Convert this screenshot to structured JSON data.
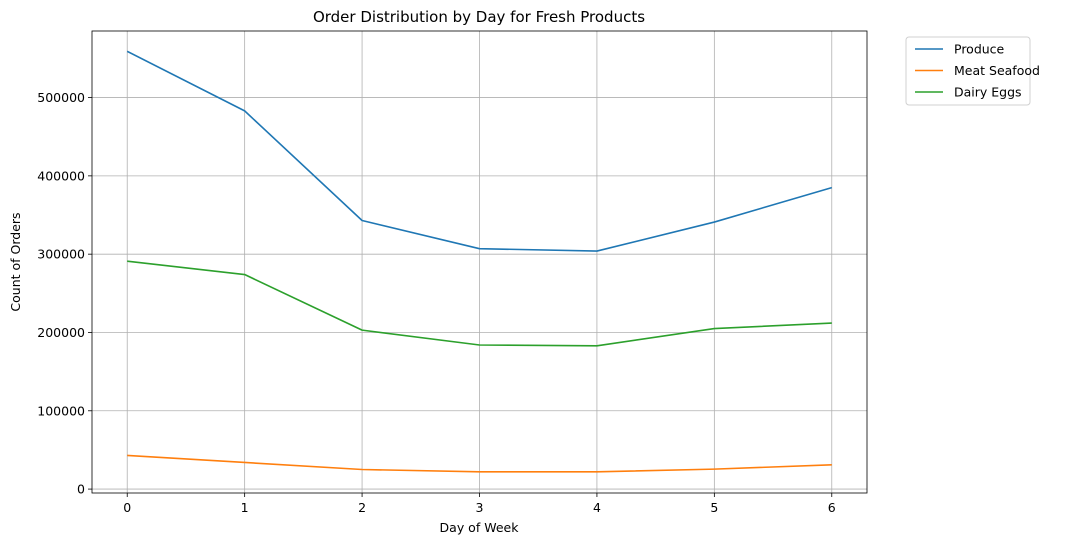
{
  "chart_data": {
    "type": "line",
    "title": "Order Distribution by Day for Fresh Products",
    "xlabel": "Day of Week",
    "ylabel": "Count of Orders",
    "x": [
      0,
      1,
      2,
      3,
      4,
      5,
      6
    ],
    "x_ticks": [
      "0",
      "1",
      "2",
      "3",
      "4",
      "5",
      "6"
    ],
    "xlim": [
      -0.3,
      6.3
    ],
    "ylim": [
      -5000,
      585000
    ],
    "y_ticks": [
      0,
      100000,
      200000,
      300000,
      400000,
      500000
    ],
    "y_tick_labels": [
      "0",
      "100000",
      "200000",
      "300000",
      "400000",
      "500000"
    ],
    "grid": true,
    "legend_placement": "outside top-right",
    "series": [
      {
        "name": "Produce",
        "color": "#1f77b4",
        "values": [
          559000,
          483000,
          343000,
          307000,
          304000,
          341000,
          385000
        ]
      },
      {
        "name": "Meat Seafood",
        "color": "#ff7f0e",
        "values": [
          43000,
          34000,
          25000,
          22000,
          22000,
          25500,
          31000
        ]
      },
      {
        "name": "Dairy Eggs",
        "color": "#2ca02c",
        "values": [
          291000,
          274000,
          203000,
          184000,
          183000,
          205000,
          212000
        ]
      }
    ]
  }
}
